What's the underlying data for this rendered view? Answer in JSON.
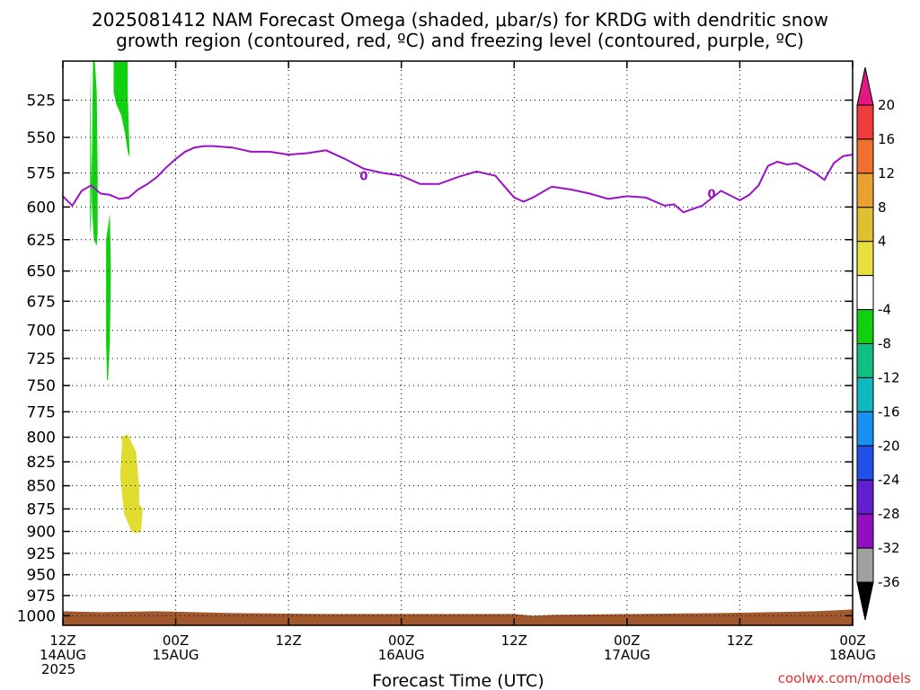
{
  "title": {
    "line1": "2025081412 NAM Forecast Omega (shaded, μbar/s) for KRDG with dendritic snow",
    "line2": "growth region (contoured, red, ºC) and freezing level (contoured, purple, ºC)"
  },
  "credit": "coolwx.com/models",
  "chart_data": {
    "type": "time-height cross section",
    "xlabel": "Forecast Time (UTC)",
    "ylabel": "",
    "x_ticks": [
      {
        "hour": 0,
        "line1": "12Z",
        "line2": "14AUG",
        "line3": "2025"
      },
      {
        "hour": 12,
        "line1": "00Z",
        "line2": "15AUG",
        "line3": ""
      },
      {
        "hour": 24,
        "line1": "12Z",
        "line2": "",
        "line3": ""
      },
      {
        "hour": 36,
        "line1": "00Z",
        "line2": "16AUG",
        "line3": ""
      },
      {
        "hour": 48,
        "line1": "12Z",
        "line2": "",
        "line3": ""
      },
      {
        "hour": 60,
        "line1": "00Z",
        "line2": "17AUG",
        "line3": ""
      },
      {
        "hour": 72,
        "line1": "12Z",
        "line2": "",
        "line3": ""
      },
      {
        "hour": 84,
        "line1": "00Z",
        "line2": "18AUG",
        "line3": ""
      }
    ],
    "xlim": [
      0,
      84
    ],
    "y_ticks": [
      525,
      550,
      575,
      600,
      625,
      650,
      675,
      700,
      725,
      750,
      775,
      800,
      825,
      850,
      875,
      900,
      925,
      950,
      975,
      1000
    ],
    "ylim": [
      500,
      1012
    ],
    "y_scale": "log-pressure",
    "grid": true,
    "freezing_level": {
      "label": "0",
      "color": "#9c10c8",
      "hours": [
        0,
        1,
        2,
        3,
        4,
        5,
        6,
        7,
        8,
        9,
        10,
        11,
        12,
        13,
        14,
        15,
        16,
        18,
        20,
        22,
        24,
        26,
        28,
        30,
        32,
        34,
        36,
        38,
        40,
        42,
        44,
        46,
        47,
        48,
        49,
        50,
        52,
        54,
        56,
        58,
        60,
        62,
        64,
        65,
        66,
        68,
        70,
        72,
        73,
        74,
        75,
        76,
        77,
        78,
        80,
        81,
        82,
        83,
        84
      ],
      "pressure": [
        592,
        599,
        588,
        584,
        590,
        591,
        594,
        593,
        587,
        583,
        578,
        571,
        565,
        560,
        557,
        556,
        556,
        557,
        560,
        560,
        562,
        561,
        559,
        565,
        572,
        575,
        577,
        583,
        583,
        578,
        574,
        577,
        585,
        593,
        596,
        593,
        585,
        587,
        590,
        594,
        592,
        593,
        599,
        598,
        604,
        599,
        588,
        595,
        591,
        584,
        570,
        567,
        569,
        568,
        575,
        580,
        568,
        563,
        562
      ]
    },
    "omega_regions": [
      {
        "level": "-8 to -4",
        "color": "#10d010",
        "hours": [
          2.9,
          3.0,
          3.1,
          3.3,
          3.6,
          3.7,
          3.7,
          3.6,
          3.4,
          3.2,
          3.1,
          3.0,
          2.9
        ],
        "pressure": [
          500,
          560,
          600,
          625,
          630,
          620,
          575,
          520,
          500,
          500,
          560,
          610,
          622
        ]
      },
      {
        "level": "-8 to -4",
        "color": "#10d010",
        "hours": [
          5.4,
          6.9,
          6.9,
          7.1,
          6.9,
          6.6,
          6.2,
          5.7,
          5.4
        ],
        "pressure": [
          500,
          500,
          520,
          564,
          560,
          547,
          535,
          528,
          520
        ]
      },
      {
        "level": "-8 to -4",
        "color": "#10d010",
        "hours": [
          4.6,
          5.0,
          5.1,
          5.0,
          4.8,
          4.7,
          4.6,
          4.6
        ],
        "pressure": [
          625,
          605,
          650,
          710,
          745,
          745,
          710,
          650
        ]
      },
      {
        "level": "4 to 8",
        "color": "#e0dc30",
        "hours": [
          6.2,
          6.9,
          7.8,
          8.1,
          8.1,
          8.5,
          8.3,
          7.9,
          7.3,
          6.5,
          6.1,
          6.3
        ],
        "pressure": [
          800,
          797,
          815,
          850,
          870,
          875,
          900,
          902,
          900,
          880,
          840,
          805
        ]
      }
    ],
    "terrain": {
      "color": "#a0582c",
      "top_pressure": 1000
    },
    "colorbar": {
      "labels": [
        "20",
        "16",
        "12",
        "8",
        "4",
        "-4",
        "-8",
        "-12",
        "-16",
        "-20",
        "-24",
        "-28",
        "-32",
        "-36"
      ],
      "colors": [
        "#e01880",
        "#f03c3c",
        "#f07030",
        "#e8a030",
        "#e0c030",
        "#e8e040",
        "#ffffff",
        "#10d010",
        "#10c080",
        "#10b8c0",
        "#1890f0",
        "#2050e8",
        "#6020d0",
        "#9010c0",
        "#a0a0a0",
        "#000000"
      ]
    }
  }
}
